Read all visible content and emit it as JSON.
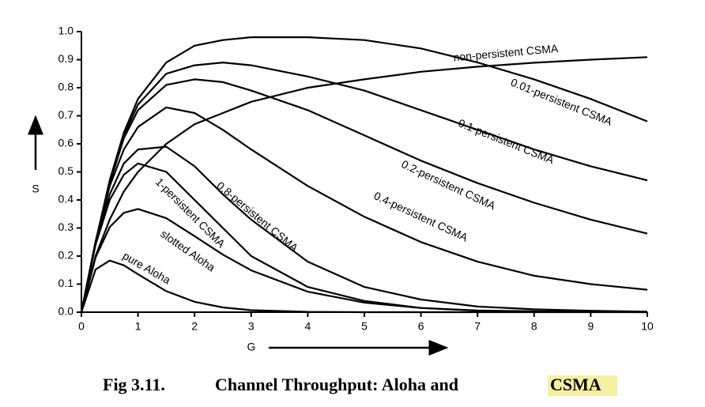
{
  "chart_data": {
    "type": "line",
    "xlabel": "G",
    "ylabel": "S",
    "x": [
      0,
      0.25,
      0.5,
      0.75,
      1,
      1.5,
      2,
      2.5,
      3,
      4,
      5,
      6,
      7,
      8,
      9,
      10
    ],
    "xlim": [
      0,
      10
    ],
    "xticks": [
      0,
      1,
      2,
      3,
      4,
      5,
      6,
      7,
      8,
      9,
      10
    ],
    "ylim": [
      0,
      1
    ],
    "yticks": [
      {
        "value": 0,
        "label": "0.0"
      },
      {
        "value": 0.1,
        "label": "0.1"
      },
      {
        "value": 0.2,
        "label": "0.2"
      },
      {
        "value": 0.3,
        "label": "0.3"
      },
      {
        "value": 0.4,
        "label": "0.4"
      },
      {
        "value": 0.5,
        "label": "0.5"
      },
      {
        "value": 0.6,
        "label": "0.6"
      },
      {
        "value": 0.7,
        "label": "0.7"
      },
      {
        "value": 0.8,
        "label": "0.8"
      },
      {
        "value": 0.9,
        "label": "0.9"
      },
      {
        "value": 1,
        "label": "1.0"
      }
    ],
    "color": "#000000",
    "series": [
      {
        "name": "non-persistent CSMA",
        "values": [
          0,
          0.2,
          0.33,
          0.43,
          0.5,
          0.6,
          0.67,
          0.71,
          0.75,
          0.8,
          0.83,
          0.857,
          0.875,
          0.889,
          0.9,
          0.909
        ]
      },
      {
        "name": "0.01-persistent CSMA",
        "values": [
          0,
          0.25,
          0.47,
          0.64,
          0.76,
          0.89,
          0.95,
          0.97,
          0.98,
          0.98,
          0.97,
          0.94,
          0.89,
          0.83,
          0.76,
          0.68
        ]
      },
      {
        "name": "0.1-persistent CSMA",
        "values": [
          0,
          0.25,
          0.46,
          0.63,
          0.74,
          0.85,
          0.88,
          0.89,
          0.88,
          0.84,
          0.79,
          0.72,
          0.65,
          0.58,
          0.52,
          0.47
        ]
      },
      {
        "name": "0.2-persistent CSMA",
        "values": [
          0,
          0.25,
          0.46,
          0.62,
          0.72,
          0.81,
          0.83,
          0.82,
          0.79,
          0.72,
          0.63,
          0.54,
          0.46,
          0.39,
          0.33,
          0.28
        ]
      },
      {
        "name": "0.4-persistent CSMA",
        "values": [
          0,
          0.25,
          0.45,
          0.58,
          0.66,
          0.73,
          0.71,
          0.65,
          0.58,
          0.45,
          0.34,
          0.25,
          0.18,
          0.13,
          0.1,
          0.08
        ]
      },
      {
        "name": "0.8-persistent CSMA",
        "values": [
          0,
          0.25,
          0.42,
          0.53,
          0.58,
          0.59,
          0.52,
          0.42,
          0.33,
          0.18,
          0.09,
          0.045,
          0.02,
          0.01,
          0.005,
          0.002
        ]
      },
      {
        "name": "1-persistent CSMA",
        "values": [
          0,
          0.24,
          0.4,
          0.49,
          0.53,
          0.5,
          0.4,
          0.3,
          0.2,
          0.09,
          0.04,
          0.015,
          0.005,
          0.002,
          0.001,
          0
        ]
      },
      {
        "name": "slotted Aloha",
        "values": [
          0,
          0.195,
          0.303,
          0.354,
          0.368,
          0.335,
          0.271,
          0.205,
          0.149,
          0.073,
          0.034,
          0.015,
          0.006,
          0.003,
          0.001,
          0.0005
        ]
      },
      {
        "name": "pure Aloha",
        "values": [
          0,
          0.152,
          0.184,
          0.167,
          0.135,
          0.075,
          0.037,
          0.017,
          0.007,
          0.001,
          0,
          0,
          0,
          0,
          0,
          0
        ]
      }
    ],
    "caption": {
      "number": "Fig 3.11.",
      "text": "Channel Throughput: Aloha and",
      "highlight": "CSMA"
    }
  }
}
